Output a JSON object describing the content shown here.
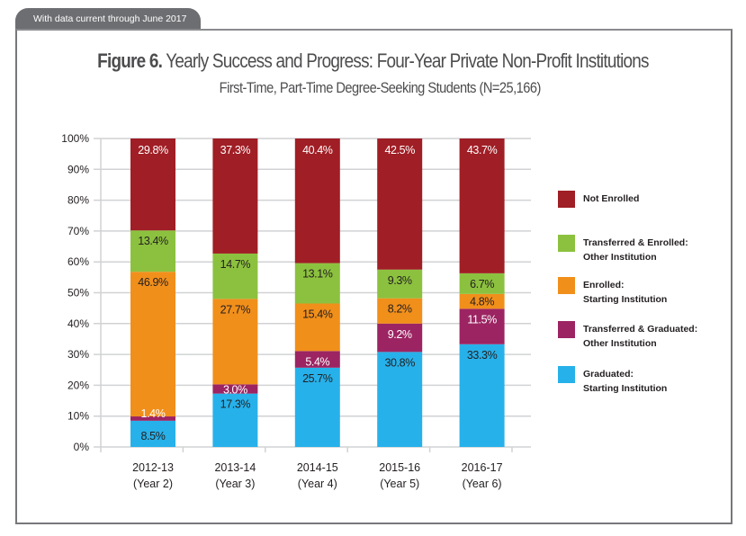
{
  "header_tab": "With data current through June 2017",
  "title_bold": "Figure 6.",
  "title_rest": " Yearly Success and Progress: Four-Year Private Non-Profit Institutions",
  "subtitle": "First-Time, Part-Time Degree-Seeking Students (N=25,166)",
  "chart_data": {
    "type": "bar",
    "stacked": true,
    "title": "Figure 6. Yearly Success and Progress: Four-Year Private Non-Profit Institutions",
    "subtitle": "First-Time, Part-Time Degree-Seeking Students (N=25,166)",
    "xlabel": "",
    "ylabel": "",
    "ylim": [
      0,
      100
    ],
    "yticks": [
      "0%",
      "10%",
      "20%",
      "30%",
      "40%",
      "50%",
      "60%",
      "70%",
      "80%",
      "90%",
      "100%"
    ],
    "grid": true,
    "legend_position": "right",
    "categories": [
      [
        "2012-13",
        "(Year 2)"
      ],
      [
        "2013-14",
        "(Year 3)"
      ],
      [
        "2014-15",
        "(Year 4)"
      ],
      [
        "2015-16",
        "(Year 5)"
      ],
      [
        "2016-17",
        "(Year 6)"
      ]
    ],
    "series": [
      {
        "name": "Graduated: Starting Institution",
        "legend": [
          "Graduated:",
          "Starting Institution"
        ],
        "color": "#27b1ea",
        "label_color": "#231f20",
        "values": [
          8.5,
          17.3,
          25.7,
          30.8,
          33.3
        ]
      },
      {
        "name": "Transferred & Graduated: Other Institution",
        "legend": [
          "Transferred & Graduated:",
          "Other Institution"
        ],
        "color": "#9c2462",
        "label_color": "#ffffff",
        "values": [
          1.4,
          3.0,
          5.4,
          9.2,
          11.5
        ]
      },
      {
        "name": "Enrolled: Starting Institution",
        "legend": [
          "Enrolled:",
          "Starting Institution"
        ],
        "color": "#f18f1b",
        "label_color": "#231f20",
        "values": [
          46.9,
          27.7,
          15.4,
          8.2,
          4.8
        ]
      },
      {
        "name": "Transferred & Enrolled: Other Institution",
        "legend": [
          "Transferred & Enrolled:",
          "Other Institution"
        ],
        "color": "#8cc13f",
        "label_color": "#231f20",
        "values": [
          13.4,
          14.7,
          13.1,
          9.3,
          6.7
        ]
      },
      {
        "name": "Not Enrolled",
        "legend": [
          "Not Enrolled"
        ],
        "color": "#a01e25",
        "label_color": "#ffffff",
        "values": [
          29.8,
          37.3,
          40.4,
          42.5,
          43.7
        ]
      }
    ],
    "data_labels": [
      [
        "8.5%",
        "1.4%",
        "46.9%",
        "13.4%",
        "29.8%"
      ],
      [
        "17.3%",
        "3.0%",
        "27.7%",
        "14.7%",
        "37.3%"
      ],
      [
        "25.7%",
        "5.4%",
        "15.4%",
        "13.1%",
        "40.4%"
      ],
      [
        "30.8%",
        "9.2%",
        "8.2%",
        "9.3%",
        "42.5%"
      ],
      [
        "33.3%",
        "11.5%",
        "4.8%",
        "6.7%",
        "43.7%"
      ]
    ],
    "legend_order": [
      "Not Enrolled",
      "Transferred & Enrolled: Other Institution",
      "Enrolled: Starting Institution",
      "Transferred & Graduated: Other Institution",
      "Graduated: Starting Institution"
    ]
  }
}
